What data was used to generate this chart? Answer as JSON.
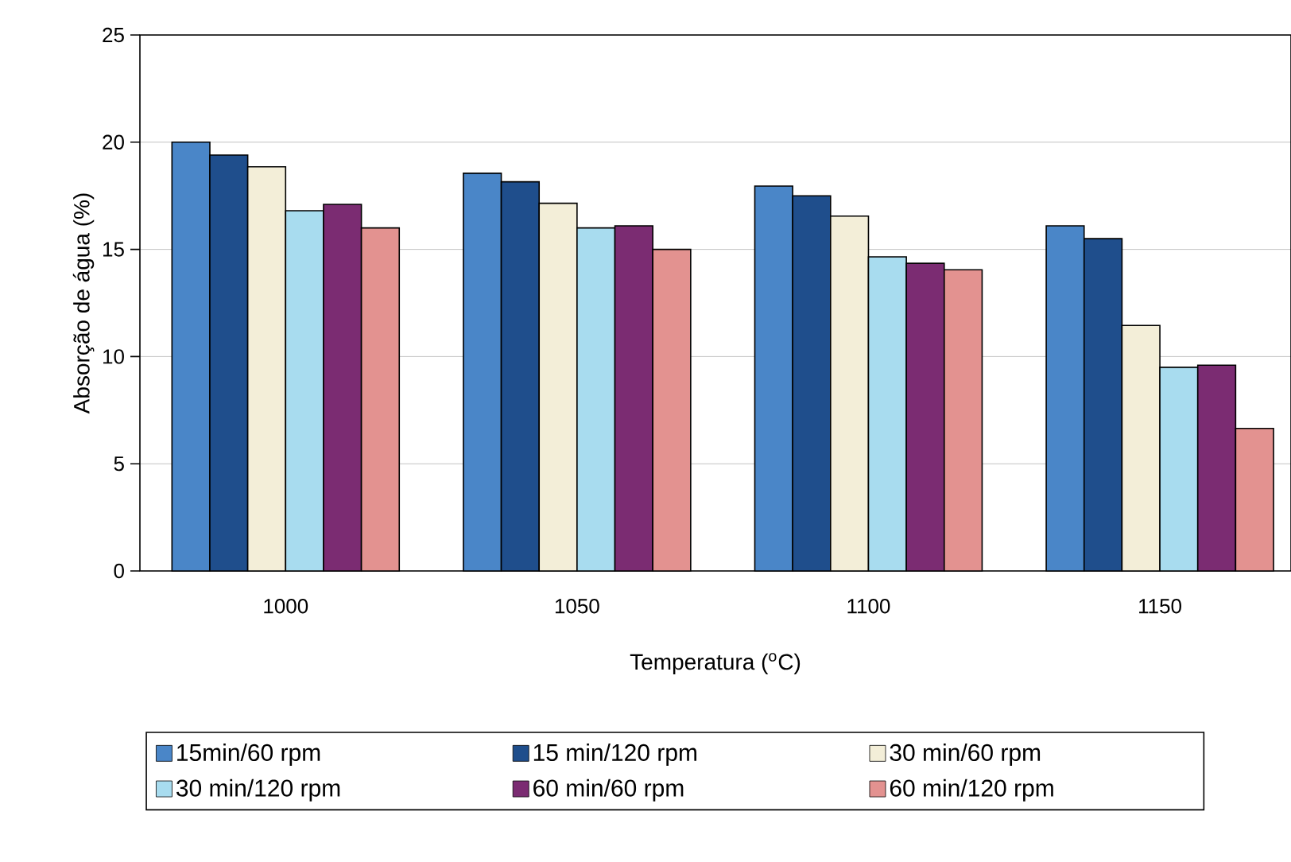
{
  "chart_data": {
    "type": "bar",
    "xlabel": "Temperatura ($^{o}$C)",
    "ylabel": "Absorção de água (%)",
    "categories": [
      "1000",
      "1050",
      "1100",
      "1150"
    ],
    "series": [
      {
        "name": "15min/60 rpm",
        "color": "#4a86c8",
        "values": [
          20.0,
          18.55,
          17.95,
          16.1
        ]
      },
      {
        "name": "15 min/120 rpm",
        "color": "#1f4e8c",
        "values": [
          19.4,
          18.15,
          17.5,
          15.5
        ]
      },
      {
        "name": "30 min/60 rpm",
        "color": "#f3eed8",
        "values": [
          18.85,
          17.15,
          16.55,
          11.45
        ]
      },
      {
        "name": "30 min/120 rpm",
        "color": "#a8dcef",
        "values": [
          16.8,
          16.0,
          14.65,
          9.5
        ]
      },
      {
        "name": "60 min/60 rpm",
        "color": "#7b2c72",
        "values": [
          17.1,
          16.1,
          14.35,
          9.6
        ]
      },
      {
        "name": "60 min/120 rpm",
        "color": "#e39290",
        "values": [
          16.0,
          15.0,
          14.05,
          6.65
        ]
      }
    ],
    "ylim": [
      0,
      25
    ],
    "yticks": [
      0,
      5,
      10,
      15,
      20,
      25
    ],
    "grid": "y",
    "legend": "bottom"
  }
}
